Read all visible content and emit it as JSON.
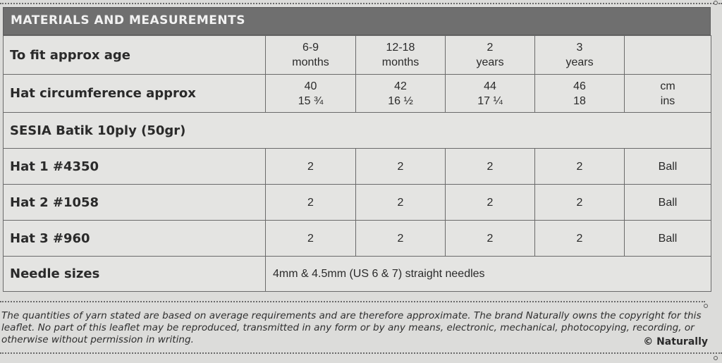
{
  "section_title": "MATERIALS AND MEASUREMENTS",
  "rows": {
    "age": {
      "label": "To fit approx age",
      "cells": [
        {
          "line1": "6-9",
          "line2": "months"
        },
        {
          "line1": "12-18",
          "line2": "months"
        },
        {
          "line1": "2",
          "line2": "years"
        },
        {
          "line1": "3",
          "line2": "years"
        }
      ],
      "unit": {
        "line1": "",
        "line2": ""
      }
    },
    "circumference": {
      "label": "Hat circumference approx",
      "cells": [
        {
          "line1": "40",
          "line2": "15 ¾"
        },
        {
          "line1": "42",
          "line2": "16 ½"
        },
        {
          "line1": "44",
          "line2": "17 ¼"
        },
        {
          "line1": "46",
          "line2": "18"
        }
      ],
      "unit": {
        "line1": "cm",
        "line2": "ins"
      }
    },
    "yarn": {
      "label": "SESIA Batik 10ply (50gr)"
    },
    "hat1": {
      "label": "Hat 1  #4350",
      "values": [
        "2",
        "2",
        "2",
        "2"
      ],
      "unit": "Ball"
    },
    "hat2": {
      "label": "Hat 2  #1058",
      "values": [
        "2",
        "2",
        "2",
        "2"
      ],
      "unit": "Ball"
    },
    "hat3": {
      "label": "Hat 3  #960",
      "values": [
        "2",
        "2",
        "2",
        "2"
      ],
      "unit": "Ball"
    },
    "needles": {
      "label": "Needle sizes",
      "value": "4mm & 4.5mm (US 6 & 7) straight needles"
    }
  },
  "footnote": "The quantities of yarn stated are based on average requirements and are therefore approximate. The brand Naturally owns the copyright for this leaflet. No part of this leaflet may be reproduced, transmitted in any form or by any means, electronic, mechanical, photocopying, recording, or otherwise without permission in writing.",
  "copyright": "© Naturally"
}
